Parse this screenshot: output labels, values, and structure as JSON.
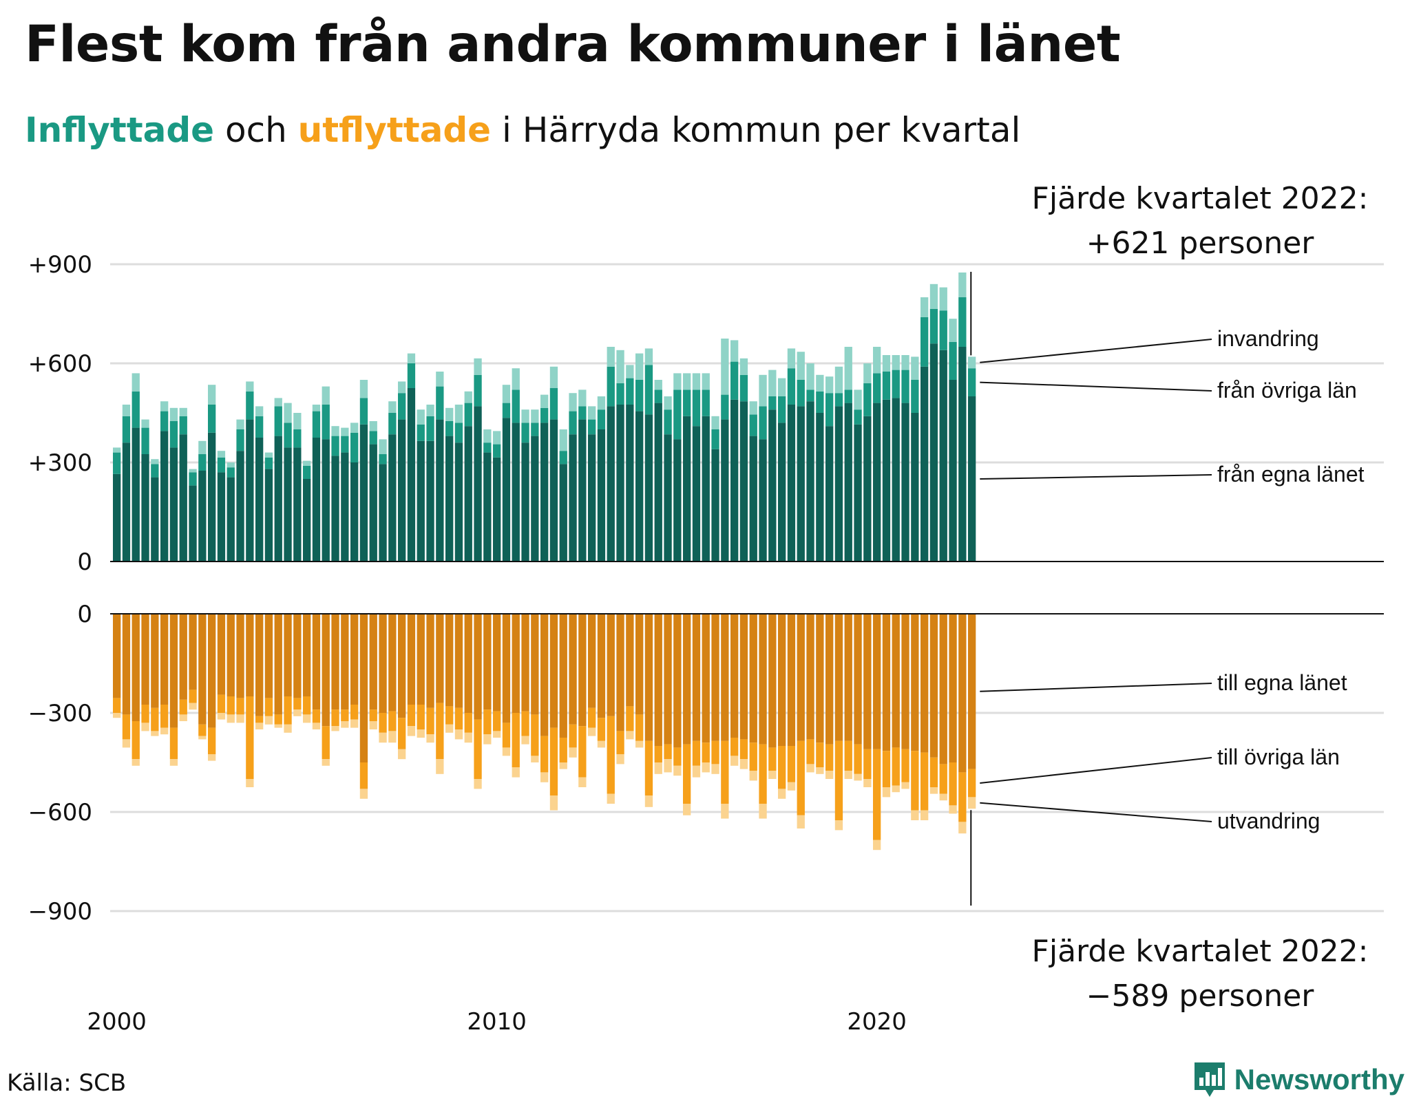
{
  "title": "Flest kom från andra kommuner i länet",
  "subtitle": {
    "in_word": "Inflyttade",
    "middle": " och ",
    "out_word": "utflyttade",
    "rest": " i Härryda kommun per kvartal"
  },
  "colors": {
    "in_own": "#0f6157",
    "in_other": "#1a9983",
    "in_immig": "#8fd3c7",
    "out_own": "#d58214",
    "out_other": "#f6a01a",
    "out_emig": "#fbd38f",
    "grid": "#dddddd",
    "axis": "#111111"
  },
  "annotations": {
    "top": [
      "Fjärde kvartalet 2022:",
      "+621 personer"
    ],
    "bottom": [
      "Fjärde kvartalet 2022:",
      "−589 personer"
    ]
  },
  "source": "Källa: SCB",
  "brand": {
    "name": "Newsworthy",
    "icon": "newsworthy-logo-icon"
  },
  "chart_data": {
    "type": "bar",
    "stacked": true,
    "title": "Flest kom från andra kommuner i länet",
    "subtitle": "Inflyttade och utflyttade i Härryda kommun per kvartal",
    "x_ticks": [
      "2000",
      "2010",
      "2020"
    ],
    "grid": true,
    "panels": [
      {
        "name": "Inflyttade",
        "y_ticks": [
          "+900",
          "+600",
          "+300",
          "0"
        ],
        "ylim": [
          0,
          900
        ],
        "stack_order": [
          "från egna länet",
          "från övriga län",
          "invandring"
        ],
        "series": [
          {
            "name": "från egna länet",
            "color": "#0f6157",
            "values": [
              265,
              360,
              405,
              325,
              255,
              395,
              345,
              385,
              230,
              275,
              390,
              270,
              255,
              335,
              430,
              375,
              280,
              380,
              345,
              345,
              250,
              375,
              370,
              320,
              330,
              300,
              415,
              355,
              295,
              385,
              430,
              525,
              365,
              365,
              430,
              380,
              360,
              410,
              470,
              330,
              315,
              435,
              420,
              360,
              380,
              420,
              430,
              295,
              385,
              430,
              385,
              400,
              470,
              475,
              475,
              455,
              445,
              480,
              385,
              370,
              440,
              410,
              440,
              340,
              430,
              490,
              485,
              380,
              370,
              460,
              420,
              475,
              470,
              485,
              450,
              410,
              470,
              480,
              415,
              440,
              480,
              490,
              495,
              480,
              450,
              590,
              660,
              640,
              550,
              650,
              500
            ]
          },
          {
            "name": "från övriga län",
            "color": "#1a9983",
            "values": [
              65,
              80,
              110,
              80,
              40,
              60,
              80,
              55,
              40,
              50,
              85,
              45,
              30,
              65,
              85,
              65,
              35,
              90,
              75,
              55,
              40,
              80,
              105,
              60,
              50,
              90,
              80,
              40,
              30,
              65,
              80,
              75,
              50,
              75,
              100,
              45,
              60,
              70,
              95,
              30,
              40,
              45,
              100,
              60,
              40,
              45,
              95,
              40,
              70,
              40,
              45,
              60,
              120,
              65,
              80,
              95,
              150,
              40,
              75,
              150,
              80,
              110,
              80,
              60,
              75,
              115,
              80,
              65,
              100,
              40,
              80,
              110,
              80,
              35,
              65,
              100,
              40,
              40,
              45,
              100,
              90,
              85,
              85,
              100,
              100,
              150,
              105,
              120,
              115,
              150,
              85
            ]
          },
          {
            "name": "invandring",
            "color": "#8fd3c7",
            "values": [
              15,
              35,
              55,
              25,
              15,
              30,
              40,
              25,
              10,
              40,
              60,
              20,
              15,
              30,
              30,
              30,
              15,
              25,
              60,
              50,
              15,
              20,
              55,
              30,
              25,
              30,
              55,
              30,
              45,
              35,
              35,
              30,
              45,
              35,
              45,
              40,
              55,
              35,
              50,
              40,
              40,
              55,
              65,
              40,
              40,
              40,
              65,
              65,
              55,
              50,
              40,
              40,
              60,
              100,
              40,
              80,
              50,
              30,
              40,
              50,
              50,
              50,
              50,
              40,
              170,
              65,
              50,
              40,
              95,
              80,
              55,
              60,
              85,
              80,
              50,
              50,
              80,
              130,
              60,
              60,
              80,
              50,
              45,
              45,
              70,
              60,
              75,
              70,
              70,
              75,
              35
            ]
          }
        ]
      },
      {
        "name": "Utflyttade",
        "y_ticks": [
          "0",
          "−300",
          "−600",
          "−900"
        ],
        "ylim": [
          -900,
          0
        ],
        "stack_order": [
          "till egna länet",
          "till övriga län",
          "utvandring"
        ],
        "series": [
          {
            "name": "till egna länet",
            "color": "#d58214",
            "values": [
              -255,
              -305,
              -325,
              -275,
              -285,
              -275,
              -345,
              -260,
              -230,
              -335,
              -345,
              -245,
              -250,
              -255,
              -250,
              -310,
              -255,
              -305,
              -250,
              -255,
              -250,
              -290,
              -340,
              -290,
              -290,
              -275,
              -450,
              -290,
              -300,
              -295,
              -315,
              -275,
              -275,
              -285,
              -270,
              -280,
              -285,
              -300,
              -320,
              -290,
              -295,
              -330,
              -300,
              -295,
              -305,
              -370,
              -345,
              -375,
              -335,
              -340,
              -285,
              -315,
              -310,
              -355,
              -280,
              -305,
              -385,
              -400,
              -395,
              -405,
              -395,
              -385,
              -390,
              -385,
              -385,
              -375,
              -380,
              -390,
              -395,
              -405,
              -400,
              -400,
              -385,
              -380,
              -390,
              -395,
              -385,
              -385,
              -395,
              -410,
              -410,
              -415,
              -405,
              -410,
              -415,
              -420,
              -435,
              -455,
              -450,
              -480,
              -470
            ]
          },
          {
            "name": "till övriga län",
            "color": "#f6a01a",
            "values": [
              -45,
              -75,
              -115,
              -55,
              -70,
              -70,
              -95,
              -45,
              -40,
              -35,
              -80,
              -55,
              -55,
              -50,
              -250,
              -20,
              -55,
              -30,
              -85,
              -35,
              -55,
              -40,
              -100,
              -50,
              -35,
              -45,
              -80,
              -35,
              -60,
              -60,
              -95,
              -65,
              -75,
              -80,
              -170,
              -55,
              -65,
              -60,
              -180,
              -75,
              -60,
              -75,
              -165,
              -75,
              -125,
              -110,
              -205,
              -75,
              -70,
              -155,
              -60,
              -70,
              -235,
              -70,
              -75,
              -80,
              -165,
              -50,
              -45,
              -55,
              -180,
              -75,
              -60,
              -70,
              -190,
              -55,
              -60,
              -85,
              -180,
              -70,
              -130,
              -110,
              -225,
              -75,
              -75,
              -80,
              -240,
              -90,
              -90,
              -90,
              -275,
              -110,
              -115,
              -100,
              -180,
              -175,
              -90,
              -90,
              -130,
              -150,
              -85
            ]
          },
          {
            "name": "utvandring",
            "color": "#fbd38f",
            "values": [
              -15,
              -25,
              -20,
              -25,
              -15,
              -20,
              -20,
              -20,
              -20,
              -10,
              -20,
              -20,
              -25,
              -25,
              -25,
              -20,
              -25,
              -10,
              -25,
              -20,
              -25,
              -20,
              -20,
              -15,
              -20,
              -25,
              -30,
              -25,
              -30,
              -35,
              -30,
              -30,
              -25,
              -25,
              -45,
              -25,
              -30,
              -30,
              -30,
              -30,
              -20,
              -25,
              -30,
              -25,
              -20,
              -30,
              -45,
              -20,
              -30,
              -30,
              -25,
              -20,
              -30,
              -30,
              -25,
              -20,
              -35,
              -35,
              -40,
              -30,
              -35,
              -35,
              -30,
              -30,
              -45,
              -30,
              -30,
              -30,
              -45,
              -25,
              -30,
              -25,
              -40,
              -25,
              -20,
              -25,
              -30,
              -25,
              -20,
              -25,
              -30,
              -30,
              -20,
              -20,
              -30,
              -30,
              -20,
              -20,
              -25,
              -35,
              -35
            ]
          }
        ]
      }
    ]
  }
}
